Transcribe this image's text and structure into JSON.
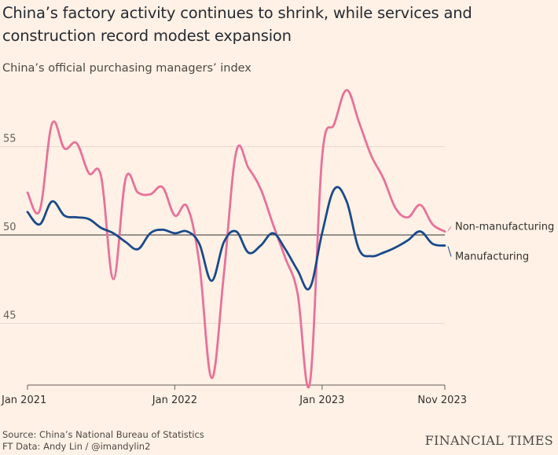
{
  "title": "China’s factory activity continues to shrink, while services and construction record modest expansion",
  "subtitle": "China’s official purchasing managers’ index",
  "source_line1": "Source: China’s National Bureau of Statistics",
  "source_line2": "FT Data: Andy Lin / @imandylin2",
  "brand": "FINANCIAL TIMES",
  "colors": {
    "background": "#fff1e5",
    "non_manufacturing": "#e8719a",
    "manufacturing": "#1a4a8a",
    "baseline": "#33302e",
    "grid": "#e6d9ce"
  },
  "chart_data": {
    "type": "line",
    "x": [
      "2021-01",
      "2021-02",
      "2021-03",
      "2021-04",
      "2021-05",
      "2021-06",
      "2021-07",
      "2021-08",
      "2021-09",
      "2021-10",
      "2021-11",
      "2021-12",
      "2022-01",
      "2022-02",
      "2022-03",
      "2022-04",
      "2022-05",
      "2022-06",
      "2022-07",
      "2022-08",
      "2022-09",
      "2022-10",
      "2022-11",
      "2022-12",
      "2023-01",
      "2023-02",
      "2023-03",
      "2023-04",
      "2023-05",
      "2023-06",
      "2023-07",
      "2023-08",
      "2023-09",
      "2023-10",
      "2023-11"
    ],
    "x_ticks": [
      {
        "x": "2021-01",
        "label": "Jan 2021"
      },
      {
        "x": "2022-01",
        "label": "Jan 2022"
      },
      {
        "x": "2023-01",
        "label": "Jan 2023"
      },
      {
        "x": "2023-11",
        "label": "Nov 2023"
      }
    ],
    "y_ticks": [
      45,
      50,
      55
    ],
    "ylim": [
      41.5,
      58.5
    ],
    "baseline": 50,
    "grid": true,
    "series": [
      {
        "name": "Non-manufacturing",
        "color": "#e8719a",
        "values": [
          52.4,
          51.4,
          56.3,
          54.9,
          55.2,
          53.5,
          53.3,
          47.5,
          53.2,
          52.4,
          52.3,
          52.7,
          51.1,
          51.6,
          48.4,
          41.9,
          47.8,
          54.7,
          53.8,
          52.6,
          50.6,
          48.7,
          46.7,
          41.6,
          54.4,
          56.3,
          58.2,
          56.4,
          54.5,
          53.2,
          51.5,
          51.0,
          51.7,
          50.6,
          50.2
        ]
      },
      {
        "name": "Manufacturing",
        "color": "#1a4a8a",
        "values": [
          51.3,
          50.6,
          51.9,
          51.1,
          51.0,
          50.9,
          50.4,
          50.1,
          49.6,
          49.2,
          50.1,
          50.3,
          50.1,
          50.2,
          49.5,
          47.4,
          49.6,
          50.2,
          49.0,
          49.4,
          50.1,
          49.2,
          48.0,
          47.0,
          50.1,
          52.6,
          51.9,
          49.2,
          48.8,
          49.0,
          49.3,
          49.7,
          50.2,
          49.5,
          49.4
        ]
      }
    ]
  }
}
